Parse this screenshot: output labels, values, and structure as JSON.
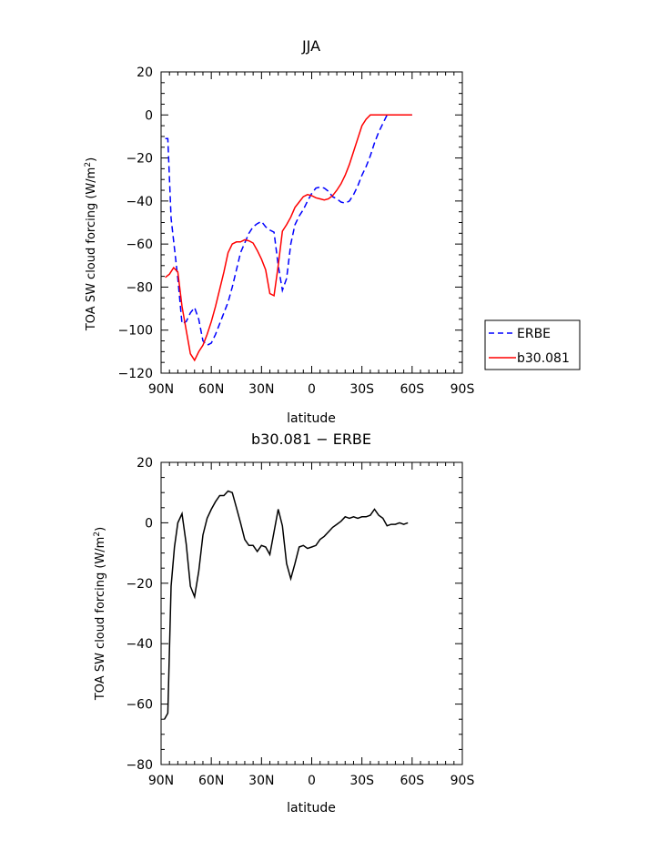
{
  "chart_data": [
    {
      "type": "line",
      "title": "JJA",
      "xlabel": "latitude",
      "ylabel_main": "TOA SW cloud forcing (W/m",
      "ylabel_sup": "2",
      "ylabel_close": ")",
      "xlim": [
        90,
        -90
      ],
      "ylim": [
        -120,
        20
      ],
      "xticks": [
        {
          "value": 90,
          "label": "90N"
        },
        {
          "value": 60,
          "label": "60N"
        },
        {
          "value": 30,
          "label": "30N"
        },
        {
          "value": 0,
          "label": "0"
        },
        {
          "value": -30,
          "label": "30S"
        },
        {
          "value": -60,
          "label": "60S"
        },
        {
          "value": -90,
          "label": "90S"
        }
      ],
      "yticks": [
        20,
        0,
        -20,
        -40,
        -60,
        -80,
        -100,
        -120
      ],
      "yticklabels": [
        "20",
        "0",
        "−20",
        "−40",
        "−60",
        "−80",
        "−100",
        "−120"
      ],
      "legend_position": "right",
      "series": [
        {
          "name": "ERBE",
          "color": "#0000ff",
          "dash": "dashed",
          "points": [
            [
              87.5,
              -11
            ],
            [
              86,
              -11
            ],
            [
              84,
              -48
            ],
            [
              82,
              -62
            ],
            [
              80,
              -76
            ],
            [
              77.5,
              -97
            ],
            [
              75,
              -96
            ],
            [
              72.5,
              -92
            ],
            [
              70,
              -89.5
            ],
            [
              67.5,
              -95
            ],
            [
              65,
              -105
            ],
            [
              62.5,
              -107
            ],
            [
              60,
              -106
            ],
            [
              57.5,
              -102
            ],
            [
              55,
              -97
            ],
            [
              52.5,
              -92
            ],
            [
              50,
              -87
            ],
            [
              47.5,
              -80
            ],
            [
              45,
              -72
            ],
            [
              42.5,
              -64
            ],
            [
              40,
              -59.5
            ],
            [
              37.5,
              -55
            ],
            [
              35,
              -52
            ],
            [
              32.5,
              -50.5
            ],
            [
              30,
              -49.5
            ],
            [
              27.5,
              -52
            ],
            [
              25,
              -53.5
            ],
            [
              22.5,
              -54.5
            ],
            [
              20,
              -70
            ],
            [
              17.5,
              -81.5
            ],
            [
              15,
              -76
            ],
            [
              12.5,
              -60
            ],
            [
              10,
              -51
            ],
            [
              7.5,
              -47
            ],
            [
              5,
              -44
            ],
            [
              2.5,
              -40
            ],
            [
              0,
              -36.5
            ],
            [
              -2.5,
              -34
            ],
            [
              -5,
              -33.5
            ],
            [
              -7.5,
              -34
            ],
            [
              -10,
              -35.5
            ],
            [
              -12.5,
              -38
            ],
            [
              -15,
              -39
            ],
            [
              -17.5,
              -40.5
            ],
            [
              -20,
              -41
            ],
            [
              -22.5,
              -40
            ],
            [
              -25,
              -37
            ],
            [
              -27.5,
              -33
            ],
            [
              -30,
              -28
            ],
            [
              -32.5,
              -24
            ],
            [
              -35,
              -19
            ],
            [
              -37.5,
              -13
            ],
            [
              -40,
              -8
            ],
            [
              -42.5,
              -4
            ],
            [
              -45,
              0
            ],
            [
              -47.5,
              0
            ],
            [
              -50,
              0
            ],
            [
              -52.5,
              0
            ],
            [
              -55,
              0
            ],
            [
              -57.5,
              0
            ],
            [
              -60,
              0
            ]
          ]
        },
        {
          "name": "b30.081",
          "color": "#ff0000",
          "dash": "solid",
          "points": [
            [
              87.5,
              -75.5
            ],
            [
              85,
              -74
            ],
            [
              82.5,
              -71
            ],
            [
              80,
              -73
            ],
            [
              77.5,
              -89
            ],
            [
              75,
              -100
            ],
            [
              72.5,
              -111
            ],
            [
              70,
              -114
            ],
            [
              67.5,
              -110
            ],
            [
              65,
              -107
            ],
            [
              62.5,
              -102
            ],
            [
              60,
              -96
            ],
            [
              57.5,
              -89
            ],
            [
              55,
              -81
            ],
            [
              52.5,
              -73
            ],
            [
              50,
              -64
            ],
            [
              47.5,
              -60
            ],
            [
              45,
              -59
            ],
            [
              42.5,
              -59
            ],
            [
              40,
              -58
            ],
            [
              37.5,
              -58.5
            ],
            [
              35,
              -59.5
            ],
            [
              32.5,
              -63
            ],
            [
              30,
              -67
            ],
            [
              27.5,
              -72
            ],
            [
              25,
              -83
            ],
            [
              22.5,
              -84
            ],
            [
              20,
              -70
            ],
            [
              17.5,
              -54
            ],
            [
              15,
              -51
            ],
            [
              12.5,
              -47.5
            ],
            [
              10,
              -43
            ],
            [
              7.5,
              -40.5
            ],
            [
              5,
              -38
            ],
            [
              2.5,
              -37
            ],
            [
              0,
              -37.5
            ],
            [
              -2.5,
              -38.5
            ],
            [
              -5,
              -39
            ],
            [
              -7.5,
              -39.5
            ],
            [
              -10,
              -39
            ],
            [
              -12.5,
              -37.5
            ],
            [
              -15,
              -35
            ],
            [
              -17.5,
              -32
            ],
            [
              -20,
              -28
            ],
            [
              -22.5,
              -23
            ],
            [
              -25,
              -17
            ],
            [
              -27.5,
              -11
            ],
            [
              -30,
              -5
            ],
            [
              -32.5,
              -2
            ],
            [
              -35,
              0
            ],
            [
              -37.5,
              0
            ],
            [
              -40,
              0
            ],
            [
              -42.5,
              0
            ],
            [
              -45,
              0
            ],
            [
              -47.5,
              0
            ],
            [
              -50,
              0
            ],
            [
              -52.5,
              0
            ],
            [
              -55,
              0
            ],
            [
              -57.5,
              0
            ],
            [
              -60,
              0
            ]
          ]
        }
      ]
    },
    {
      "type": "line",
      "title": "b30.081 − ERBE",
      "xlabel": "latitude",
      "ylabel_main": "TOA SW cloud forcing (W/m",
      "ylabel_sup": "2",
      "ylabel_close": ")",
      "xlim": [
        90,
        -90
      ],
      "ylim": [
        -80,
        20
      ],
      "xticks": [
        {
          "value": 90,
          "label": "90N"
        },
        {
          "value": 60,
          "label": "60N"
        },
        {
          "value": 30,
          "label": "30N"
        },
        {
          "value": 0,
          "label": "0"
        },
        {
          "value": -30,
          "label": "30S"
        },
        {
          "value": -60,
          "label": "60S"
        },
        {
          "value": -90,
          "label": "90S"
        }
      ],
      "yticks": [
        20,
        0,
        -20,
        -40,
        -60,
        -80
      ],
      "yticklabels": [
        "20",
        "0",
        "−20",
        "−40",
        "−60",
        "−80"
      ],
      "series": [
        {
          "name": "",
          "color": "#000000",
          "dash": "solid",
          "points": [
            [
              88,
              -65
            ],
            [
              86,
              -63
            ],
            [
              84,
              -21
            ],
            [
              82,
              -8
            ],
            [
              80,
              0
            ],
            [
              77.5,
              3
            ],
            [
              75,
              -7
            ],
            [
              72.5,
              -21
            ],
            [
              70,
              -24.5
            ],
            [
              67.5,
              -16
            ],
            [
              65,
              -4
            ],
            [
              62.5,
              1.5
            ],
            [
              60,
              4.5
            ],
            [
              57.5,
              7
            ],
            [
              55,
              9
            ],
            [
              52.5,
              9
            ],
            [
              50,
              10.5
            ],
            [
              47.5,
              10
            ],
            [
              45,
              5
            ],
            [
              42.5,
              0
            ],
            [
              40,
              -5.5
            ],
            [
              37.5,
              -7.5
            ],
            [
              35,
              -7.5
            ],
            [
              32.5,
              -9.5
            ],
            [
              30,
              -7.5
            ],
            [
              27.5,
              -8
            ],
            [
              25,
              -10.5
            ],
            [
              22.5,
              -3
            ],
            [
              20,
              4.5
            ],
            [
              17.5,
              -1
            ],
            [
              15,
              -13.5
            ],
            [
              12.5,
              -18.5
            ],
            [
              10,
              -13.5
            ],
            [
              7.5,
              -8
            ],
            [
              5,
              -7.5
            ],
            [
              2.5,
              -8.5
            ],
            [
              0,
              -8
            ],
            [
              -2.5,
              -7.5
            ],
            [
              -5,
              -5.5
            ],
            [
              -7.5,
              -4.5
            ],
            [
              -10,
              -3
            ],
            [
              -12.5,
              -1.5
            ],
            [
              -15,
              -0.5
            ],
            [
              -17.5,
              0.5
            ],
            [
              -20,
              2
            ],
            [
              -22.5,
              1.5
            ],
            [
              -25,
              2
            ],
            [
              -27.5,
              1.5
            ],
            [
              -30,
              2
            ],
            [
              -32.5,
              2
            ],
            [
              -35,
              2.5
            ],
            [
              -37.5,
              4.5
            ],
            [
              -40,
              2.5
            ],
            [
              -42.5,
              1.5
            ],
            [
              -45,
              -1
            ],
            [
              -47.5,
              -0.5
            ],
            [
              -50,
              -0.5
            ],
            [
              -52.5,
              0
            ],
            [
              -55,
              -0.5
            ],
            [
              -57.5,
              0
            ]
          ]
        }
      ]
    }
  ]
}
